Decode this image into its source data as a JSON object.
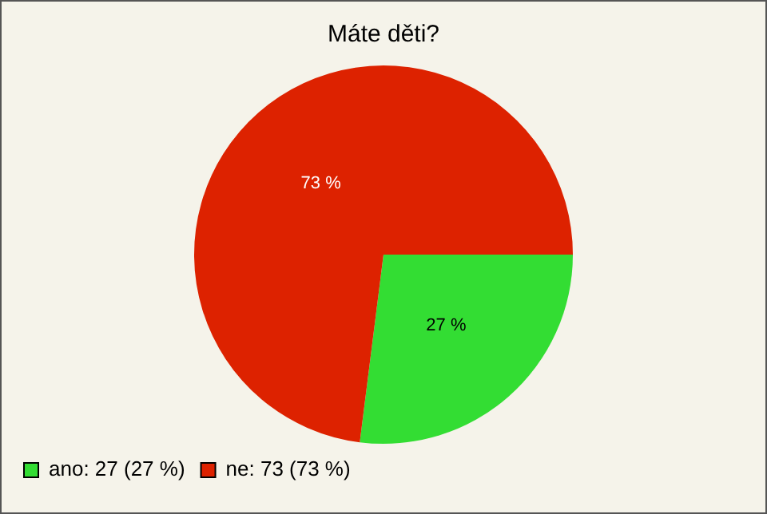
{
  "chart_data": {
    "type": "pie",
    "title": "Máte děti?",
    "categories": [
      "ano: 27 (27 %)",
      "ne: 73 (73 %)"
    ],
    "values": [
      27,
      73
    ],
    "colors": [
      "#33dd33",
      "#dd2200"
    ],
    "value_labels": [
      "27 %",
      "73 %"
    ],
    "legend": "bottom left"
  }
}
